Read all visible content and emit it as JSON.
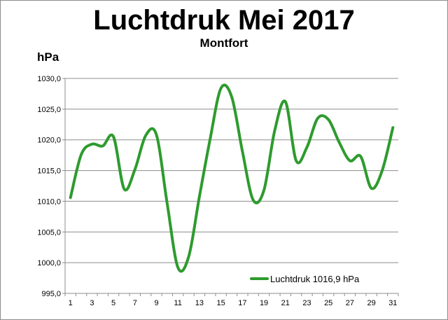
{
  "chart_data": {
    "type": "line",
    "title": "Luchtdruk Mei 2017",
    "subtitle": "Montfort",
    "ylabel": "hPa",
    "xlabel": "",
    "ylim": [
      995,
      1030
    ],
    "yticks": [
      "995,0",
      "1000,0",
      "1005,0",
      "1010,0",
      "1015,0",
      "1020,0",
      "1025,0",
      "1030,0"
    ],
    "xticks": [
      "1",
      "3",
      "5",
      "7",
      "9",
      "11",
      "13",
      "15",
      "17",
      "19",
      "21",
      "23",
      "25",
      "27",
      "29",
      "31"
    ],
    "grid": "horizontal",
    "legend_position": "bottom-right",
    "series": [
      {
        "name": "Luchtdruk 1016,9 hPa",
        "color": "#2e9b2e",
        "x": [
          1,
          2,
          3,
          4,
          5,
          6,
          7,
          8,
          9,
          10,
          11,
          12,
          13,
          14,
          15,
          16,
          17,
          18,
          19,
          20,
          21,
          22,
          23,
          24,
          25,
          26,
          27,
          28,
          29,
          30,
          31
        ],
        "values": [
          1010.6,
          1017.6,
          1019.3,
          1019.0,
          1020.5,
          1012.0,
          1015.2,
          1020.7,
          1020.8,
          1009.6,
          999.2,
          1001.0,
          1010.8,
          1020.2,
          1028.4,
          1027.0,
          1018.1,
          1010.2,
          1011.8,
          1021.5,
          1026.2,
          1016.6,
          1018.8,
          1023.5,
          1023.3,
          1019.6,
          1016.6,
          1017.3,
          1012.1,
          1015.0,
          1022.0
        ]
      }
    ]
  }
}
